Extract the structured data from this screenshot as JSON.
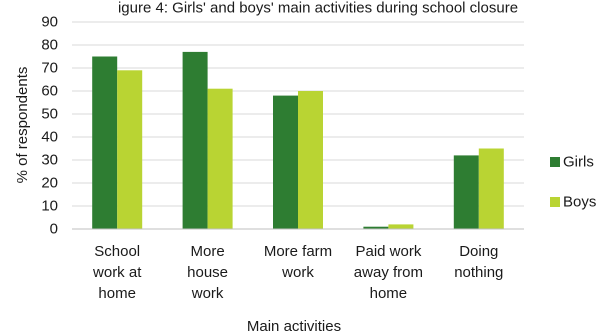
{
  "chart_data": {
    "type": "bar",
    "title": "igure 4: Girls' and boys' main activities during school closure",
    "xlabel": "Main activities",
    "ylabel": "% of respondents",
    "ylim": [
      0,
      90
    ],
    "yticks": [
      0,
      10,
      20,
      30,
      40,
      50,
      60,
      70,
      80,
      90
    ],
    "grid": true,
    "legend": "right",
    "categories": [
      [
        "School",
        "work at",
        "home"
      ],
      [
        "More",
        "house",
        "work"
      ],
      [
        "More farm",
        "work"
      ],
      [
        "Paid work",
        "away from",
        "home"
      ],
      [
        "Doing",
        "nothing"
      ]
    ],
    "series": [
      {
        "name": "Girls",
        "color": "#2e7d32",
        "values": [
          75,
          77,
          58,
          1,
          32
        ]
      },
      {
        "name": "Boys",
        "color": "#b9d433",
        "values": [
          69,
          61,
          60,
          2,
          35
        ]
      }
    ]
  }
}
